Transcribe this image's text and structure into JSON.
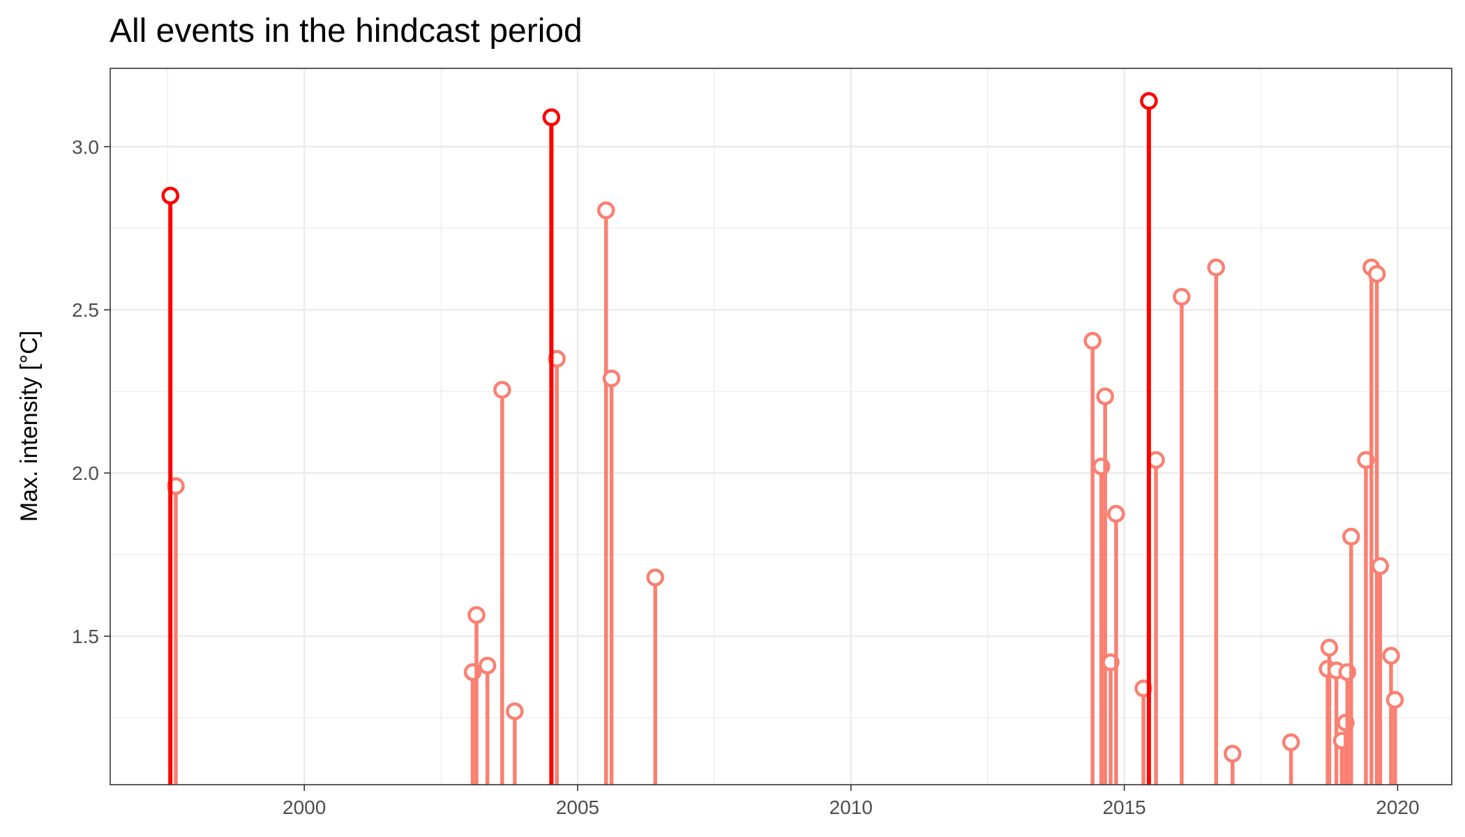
{
  "chart_data": {
    "type": "lollipop",
    "title": "All events in the hindcast period",
    "xlabel": "",
    "ylabel": "Max. intensity [°C]",
    "xlim": [
      1996.45,
      2020.99
    ],
    "ylim": [
      1.045,
      3.24
    ],
    "baseline": 1.045,
    "x_ticks": [
      2000,
      2005,
      2010,
      2015,
      2020
    ],
    "x_tick_labels": [
      "2000",
      "2005",
      "2010",
      "2015",
      "2020"
    ],
    "y_ticks": [
      1.5,
      2.0,
      2.5,
      3.0
    ],
    "y_tick_labels": [
      "1.5",
      "2.0",
      "2.5",
      "3.0"
    ],
    "grid": true,
    "colors": {
      "highlight": "#ff0000",
      "event": "#fa8072",
      "point_fill": "#ffffff",
      "panel_border": "#333333",
      "grid": "#ebebeb"
    },
    "series": [
      {
        "values": [
          {
            "x": 1997.55,
            "y": 2.85,
            "highlight": true
          },
          {
            "x": 1997.65,
            "y": 1.96,
            "highlight": false
          },
          {
            "x": 2003.08,
            "y": 1.39,
            "highlight": false
          },
          {
            "x": 2003.15,
            "y": 1.565,
            "highlight": false
          },
          {
            "x": 2003.35,
            "y": 1.41,
            "highlight": false
          },
          {
            "x": 2003.62,
            "y": 2.255,
            "highlight": false
          },
          {
            "x": 2003.85,
            "y": 1.27,
            "highlight": false
          },
          {
            "x": 2004.52,
            "y": 3.09,
            "highlight": true
          },
          {
            "x": 2004.62,
            "y": 2.35,
            "highlight": false
          },
          {
            "x": 2005.52,
            "y": 2.805,
            "highlight": false
          },
          {
            "x": 2005.62,
            "y": 2.29,
            "highlight": false
          },
          {
            "x": 2006.42,
            "y": 1.68,
            "highlight": false
          },
          {
            "x": 2014.42,
            "y": 2.405,
            "highlight": false
          },
          {
            "x": 2014.58,
            "y": 2.02,
            "highlight": false
          },
          {
            "x": 2014.65,
            "y": 2.235,
            "highlight": false
          },
          {
            "x": 2014.75,
            "y": 1.42,
            "highlight": false
          },
          {
            "x": 2014.85,
            "y": 1.875,
            "highlight": false
          },
          {
            "x": 2015.35,
            "y": 1.34,
            "highlight": false
          },
          {
            "x": 2015.45,
            "y": 3.14,
            "highlight": true
          },
          {
            "x": 2015.58,
            "y": 2.04,
            "highlight": false
          },
          {
            "x": 2016.05,
            "y": 2.54,
            "highlight": false
          },
          {
            "x": 2016.68,
            "y": 2.63,
            "highlight": false
          },
          {
            "x": 2016.98,
            "y": 1.14,
            "highlight": false
          },
          {
            "x": 2018.05,
            "y": 1.175,
            "highlight": false
          },
          {
            "x": 2018.72,
            "y": 1.4,
            "highlight": false
          },
          {
            "x": 2018.75,
            "y": 1.465,
            "highlight": false
          },
          {
            "x": 2018.88,
            "y": 1.395,
            "highlight": false
          },
          {
            "x": 2018.98,
            "y": 1.18,
            "highlight": false
          },
          {
            "x": 2019.05,
            "y": 1.235,
            "highlight": false
          },
          {
            "x": 2019.08,
            "y": 1.39,
            "highlight": false
          },
          {
            "x": 2019.15,
            "y": 1.805,
            "highlight": false
          },
          {
            "x": 2019.42,
            "y": 2.04,
            "highlight": false
          },
          {
            "x": 2019.52,
            "y": 2.63,
            "highlight": false
          },
          {
            "x": 2019.62,
            "y": 2.61,
            "highlight": false
          },
          {
            "x": 2019.68,
            "y": 1.715,
            "highlight": false
          },
          {
            "x": 2019.88,
            "y": 1.44,
            "highlight": false
          },
          {
            "x": 2019.95,
            "y": 1.305,
            "highlight": false
          }
        ]
      }
    ]
  }
}
